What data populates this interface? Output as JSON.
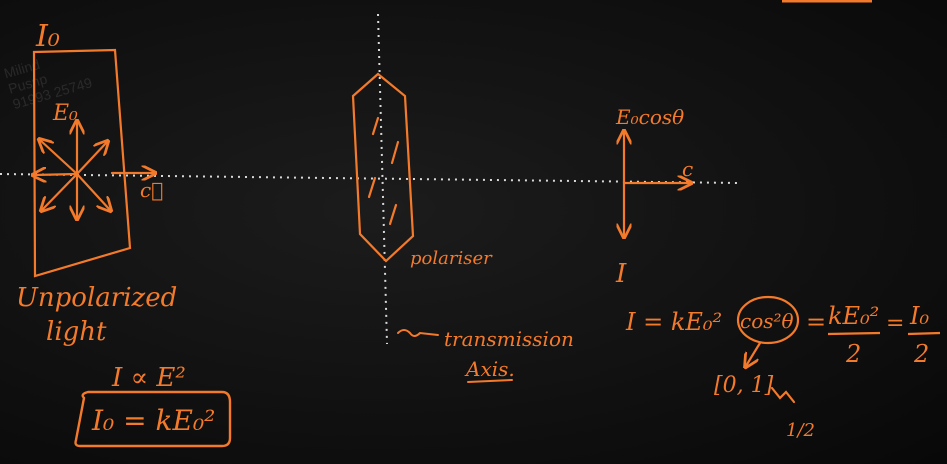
{
  "colors": {
    "ink": "#f47a2b",
    "guide": "#d9d9d9",
    "board": "#0c0c0c"
  },
  "watermark": {
    "line1": "Milind",
    "line2": "Pusnp",
    "line3": "91993 25749"
  },
  "labels": {
    "intensity_initial": "I₀",
    "amplitude": "E₀",
    "velocity_left": "c⃗",
    "unpolarized_1": "Unpolarized",
    "unpolarized_2": "light",
    "proportional": "I ∝ E²",
    "boxed_formula": "I₀ = kE₀²",
    "polariser": "polariser",
    "transmission_1": "transmission",
    "transmission_2": "Axis.",
    "component": "E₀cosθ",
    "velocity_right": "c",
    "intensity": "I",
    "malus_left": "I = kE₀²",
    "malus_circled": "cos²θ",
    "eq1": "=",
    "fraction_num": "kE₀²",
    "fraction_den": "2",
    "eq2": "=",
    "result_num": "I₀",
    "result_den": "2",
    "range": "[0, 1]",
    "average": "1/2"
  }
}
